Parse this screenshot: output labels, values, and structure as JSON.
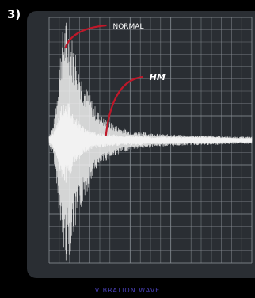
{
  "panel_label": "3)",
  "caption": "VIBRATION WAVE",
  "colors": {
    "background": "#000000",
    "plot_bg": "#2a2e33",
    "grid": "#8a9096",
    "wave": "#f2f2f2",
    "arrow": "#c0182a",
    "caption": "#4a40b8"
  },
  "chart_data": {
    "type": "line",
    "title": "",
    "xlabel": "",
    "ylabel": "",
    "grid": true,
    "series": [
      {
        "name": "NORMAL",
        "x": [
          0,
          2,
          4,
          6,
          8,
          10,
          12,
          14,
          16,
          18,
          20,
          22,
          25,
          28,
          32,
          36,
          40,
          45,
          50,
          55,
          60,
          70,
          80,
          90,
          100
        ],
        "amp": [
          0.05,
          0.12,
          0.4,
          0.85,
          1.0,
          0.95,
          0.8,
          0.7,
          0.55,
          0.45,
          0.38,
          0.3,
          0.22,
          0.17,
          0.13,
          0.1,
          0.08,
          0.07,
          0.06,
          0.05,
          0.05,
          0.04,
          0.04,
          0.03,
          0.03
        ]
      },
      {
        "name": "HM",
        "x": [
          0,
          2,
          4,
          6,
          8,
          10,
          12,
          14,
          16,
          18,
          20,
          22,
          25,
          28,
          32,
          36,
          40,
          45,
          50,
          55,
          60,
          70,
          80,
          90,
          100
        ],
        "amp": [
          0.03,
          0.06,
          0.15,
          0.3,
          0.36,
          0.3,
          0.22,
          0.17,
          0.13,
          0.1,
          0.08,
          0.07,
          0.06,
          0.05,
          0.05,
          0.04,
          0.04,
          0.04,
          0.03,
          0.03,
          0.03,
          0.03,
          0.03,
          0.02,
          0.02
        ]
      }
    ],
    "annotations": [
      {
        "text": "NORMAL",
        "points_to": "NORMAL",
        "at_x": 8
      },
      {
        "text": "HM",
        "points_to": "HM",
        "at_x": 28
      }
    ]
  }
}
